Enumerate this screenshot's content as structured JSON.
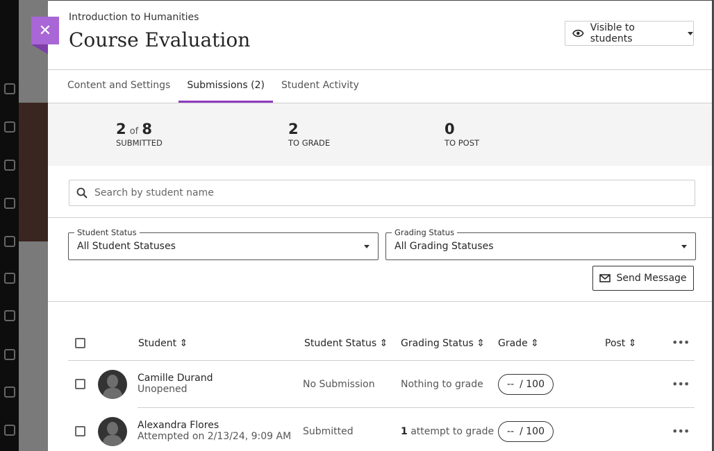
{
  "header": {
    "breadcrumb": "Introduction to Humanities",
    "title": "Course Evaluation",
    "visibility": "Visible to students"
  },
  "tabs": [
    {
      "label": "Content and Settings"
    },
    {
      "label": "Submissions (2)"
    },
    {
      "label": "Student Activity"
    }
  ],
  "stats": {
    "submitted": "2",
    "of_label": "of",
    "total": "8",
    "submitted_label": "SUBMITTED",
    "to_grade": "2",
    "to_grade_label": "TO GRADE",
    "to_post": "0",
    "to_post_label": "TO POST"
  },
  "search": {
    "placeholder": "Search by student name"
  },
  "filters": {
    "student_status_label": "Student Status",
    "student_status_value": "All Student Statuses",
    "grading_status_label": "Grading Status",
    "grading_status_value": "All Grading Statuses"
  },
  "send_message": "Send Message",
  "columns": [
    "Student",
    "Student Status",
    "Grading Status",
    "Grade",
    "Post"
  ],
  "rows": [
    {
      "name": "Camille Durand",
      "detail": "Unopened",
      "status": "No Submission",
      "grading_bold": "",
      "grading": "Nothing to grade",
      "grade": "--",
      "grade_max": "/ 100"
    },
    {
      "name": "Alexandra Flores",
      "detail": "Attempted on 2/13/24, 9:09 AM",
      "status": "Submitted",
      "grading_bold": "1",
      "grading": "attempt to grade",
      "grade": "--",
      "grade_max": "/ 100"
    }
  ],
  "colors": {
    "accent": "#8e3bbf",
    "close_button": "#a866d6"
  }
}
